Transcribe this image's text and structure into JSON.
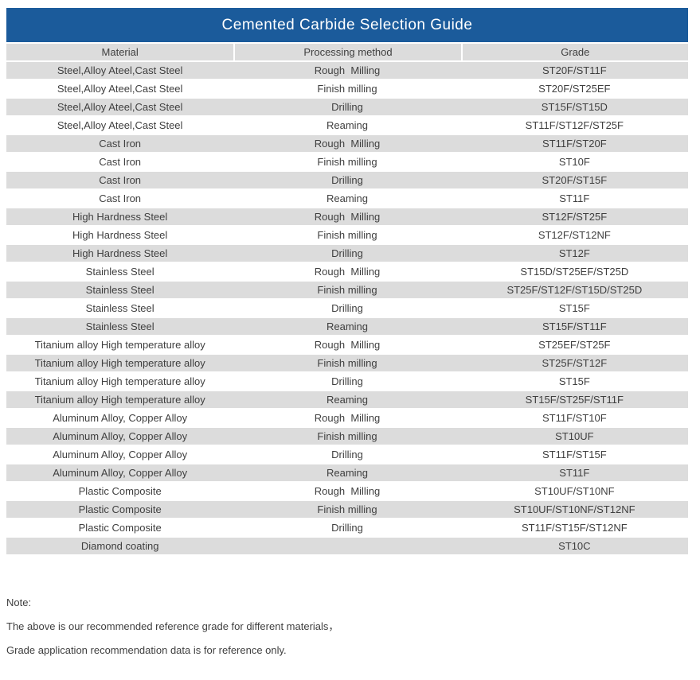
{
  "title": "Cemented Carbide Selection Guide",
  "table": {
    "columns": [
      "Material",
      "Processing method",
      "Grade"
    ],
    "rows": [
      [
        "Steel,Alloy Ateel,Cast Steel",
        "Rough  Milling",
        "ST20F/ST11F"
      ],
      [
        "Steel,Alloy Ateel,Cast Steel",
        "Finish milling",
        "ST20F/ST25EF"
      ],
      [
        "Steel,Alloy Ateel,Cast Steel",
        "Drilling",
        "ST15F/ST15D"
      ],
      [
        "Steel,Alloy Ateel,Cast Steel",
        "Reaming",
        "ST11F/ST12F/ST25F"
      ],
      [
        "Cast Iron",
        "Rough  Milling",
        "ST11F/ST20F"
      ],
      [
        "Cast Iron",
        "Finish milling",
        "ST10F"
      ],
      [
        "Cast Iron",
        "Drilling",
        "ST20F/ST15F"
      ],
      [
        "Cast Iron",
        "Reaming",
        "ST11F"
      ],
      [
        "High Hardness Steel",
        "Rough  Milling",
        "ST12F/ST25F"
      ],
      [
        "High Hardness Steel",
        "Finish milling",
        "ST12F/ST12NF"
      ],
      [
        "High Hardness Steel",
        "Drilling",
        "ST12F"
      ],
      [
        "Stainless Steel",
        "Rough  Milling",
        "ST15D/ST25EF/ST25D"
      ],
      [
        "Stainless Steel",
        "Finish milling",
        "ST25F/ST12F/ST15D/ST25D"
      ],
      [
        "Stainless Steel",
        "Drilling",
        "ST15F"
      ],
      [
        "Stainless Steel",
        "Reaming",
        "ST15F/ST11F"
      ],
      [
        "Titanium alloy High temperature alloy",
        "Rough  Milling",
        "ST25EF/ST25F"
      ],
      [
        "Titanium alloy High temperature alloy",
        "Finish milling",
        "ST25F/ST12F"
      ],
      [
        "Titanium alloy High temperature alloy",
        "Drilling",
        "ST15F"
      ],
      [
        "Titanium alloy High temperature alloy",
        "Reaming",
        "ST15F/ST25F/ST11F"
      ],
      [
        "Aluminum Alloy, Copper Alloy",
        "Rough  Milling",
        "ST11F/ST10F"
      ],
      [
        "Aluminum Alloy, Copper Alloy",
        "Finish milling",
        "ST10UF"
      ],
      [
        "Aluminum Alloy, Copper Alloy",
        "Drilling",
        "ST11F/ST15F"
      ],
      [
        "Aluminum Alloy, Copper Alloy",
        "Reaming",
        "ST11F"
      ],
      [
        "Plastic Composite",
        "Rough  Milling",
        "ST10UF/ST10NF"
      ],
      [
        "Plastic Composite",
        "Finish milling",
        "ST10UF/ST10NF/ST12NF"
      ],
      [
        "Plastic Composite",
        "Drilling",
        "ST11F/ST15F/ST12NF"
      ],
      [
        "Diamond coating",
        "",
        "ST10C"
      ]
    ]
  },
  "notes": {
    "label": "Note:",
    "line1": "The above is our recommended reference grade for different materials，",
    "line2": "Grade application recommendation data is for reference only."
  },
  "colors": {
    "header_blue": "#1b5b9b",
    "row_gray": "#dcdcdc",
    "text": "#3f3f3f",
    "title_text": "#ffffff"
  }
}
